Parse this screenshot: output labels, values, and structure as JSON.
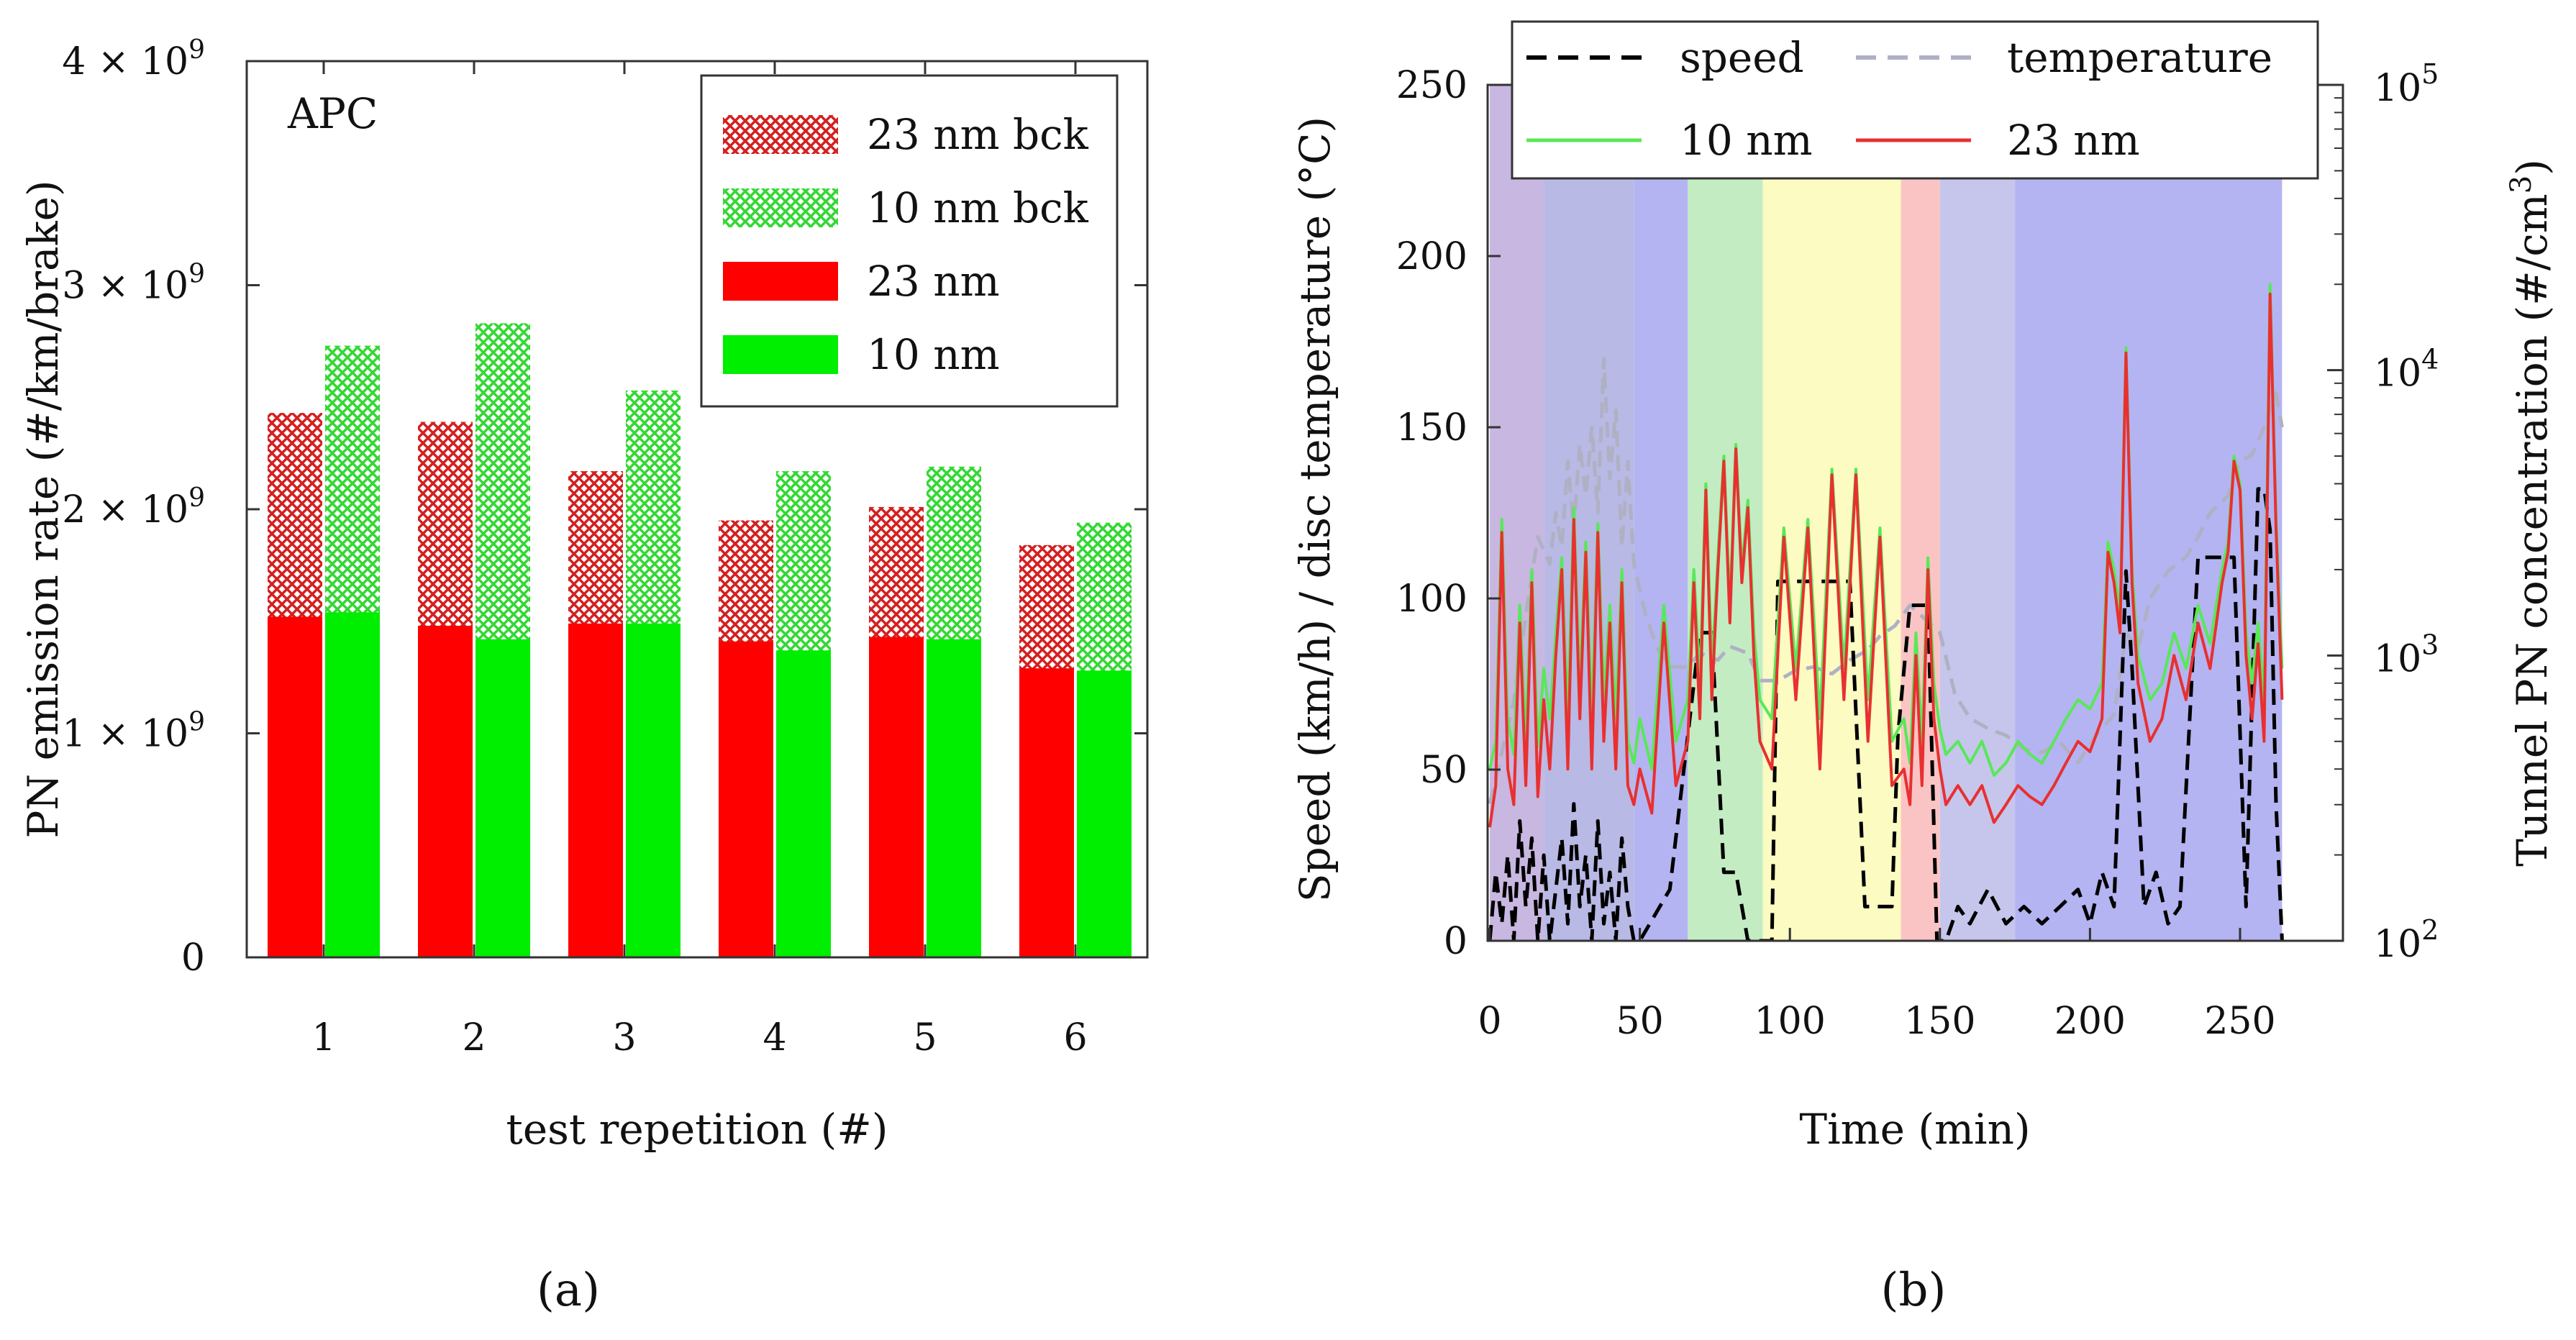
{
  "chart_data": [
    {
      "panel": "a",
      "type": "bar",
      "panel_label_text": "(a)",
      "annotation": "APC",
      "xlabel": "test repetition (#)",
      "ylabel": "PN emission rate (#/km/brake)",
      "categories": [
        "1",
        "2",
        "3",
        "4",
        "5",
        "6"
      ],
      "ylim": [
        0,
        4000000000.0
      ],
      "yticks": [
        {
          "value": 0,
          "label": "0",
          "exp": ""
        },
        {
          "value": 1000000000.0,
          "label": "1 × 10",
          "exp": "9"
        },
        {
          "value": 2000000000.0,
          "label": "2 × 10",
          "exp": "9"
        },
        {
          "value": 3000000000.0,
          "label": "3 × 10",
          "exp": "9"
        },
        {
          "value": 4000000000.0,
          "label": "4 × 10",
          "exp": "9"
        }
      ],
      "series": [
        {
          "name": "23 nm bck",
          "color": "#e8191c",
          "pattern": "hatch",
          "values": [
            2430000000.0,
            2390000000.0,
            2170000000.0,
            1950000000.0,
            2010000000.0,
            1840000000.0
          ]
        },
        {
          "name": "10 nm bck",
          "color": "#2ee82e",
          "pattern": "hatch",
          "values": [
            2730000000.0,
            2830000000.0,
            2530000000.0,
            2170000000.0,
            2190000000.0,
            1940000000.0
          ]
        },
        {
          "name": "23 nm",
          "color": "#ff0000",
          "pattern": "solid",
          "values": [
            1520000000.0,
            1480000000.0,
            1490000000.0,
            1410000000.0,
            1430000000.0,
            1290000000.0
          ]
        },
        {
          "name": "10 nm",
          "color": "#00ee00",
          "pattern": "solid",
          "values": [
            1540000000.0,
            1420000000.0,
            1490000000.0,
            1370000000.0,
            1420000000.0,
            1280000000.0
          ]
        }
      ],
      "legend_position": "top-right"
    },
    {
      "panel": "b",
      "type": "line",
      "panel_label_text": "(b)",
      "xlabel": "Time (min)",
      "ylabel": "Speed (km/h) / disc temperature (°C)",
      "y2label": "Tunnel PN concentration (#/cm",
      "y2label_exp": "3",
      "y2label_end": ")",
      "xlim": [
        0,
        285
      ],
      "xticks": [
        "0",
        "50",
        "100",
        "150",
        "200",
        "250"
      ],
      "ylim": [
        0,
        250
      ],
      "yticks": [
        "0",
        "50",
        "100",
        "150",
        "200",
        "250"
      ],
      "y2scale": "log",
      "y2lim": [
        100,
        100000
      ],
      "y2ticks": [
        {
          "base": "10",
          "exp": "2"
        },
        {
          "base": "10",
          "exp": "3"
        },
        {
          "base": "10",
          "exp": "4"
        },
        {
          "base": "10",
          "exp": "5"
        }
      ],
      "phases": [
        {
          "start": 0,
          "end": 18,
          "color": "#c8b7e0"
        },
        {
          "start": 18,
          "end": 48,
          "color": "#b9b9e6"
        },
        {
          "start": 48,
          "end": 66,
          "color": "#b4b4f2"
        },
        {
          "start": 66,
          "end": 91,
          "color": "#c3ecc3"
        },
        {
          "start": 91,
          "end": 137,
          "color": "#fbfbc2"
        },
        {
          "start": 137,
          "end": 150,
          "color": "#fbc4c4"
        },
        {
          "start": 150,
          "end": 175,
          "color": "#c6c6ec"
        },
        {
          "start": 175,
          "end": 264,
          "color": "#b4b4f2"
        }
      ],
      "series": [
        {
          "name": "speed",
          "color": "#000000",
          "style": "dashed",
          "axis": "left",
          "x": [
            0,
            2,
            4,
            6,
            8,
            10,
            12,
            14,
            16,
            18,
            20,
            22,
            24,
            26,
            28,
            30,
            32,
            34,
            36,
            38,
            40,
            42,
            44,
            46,
            48,
            50,
            60,
            70,
            74,
            78,
            82,
            86,
            90,
            94,
            96,
            100,
            105,
            110,
            116,
            120,
            125,
            130,
            134,
            136,
            140,
            143,
            146,
            149,
            152,
            156,
            160,
            166,
            172,
            178,
            184,
            190,
            196,
            200,
            204,
            208,
            212,
            214,
            218,
            222,
            226,
            230,
            236,
            240,
            244,
            248,
            252,
            256,
            258,
            260,
            262,
            264
          ],
          "y": [
            0,
            20,
            5,
            25,
            0,
            35,
            10,
            30,
            0,
            25,
            0,
            15,
            30,
            5,
            40,
            10,
            25,
            0,
            35,
            5,
            20,
            0,
            30,
            10,
            0,
            0,
            15,
            90,
            90,
            20,
            20,
            0,
            0,
            0,
            105,
            105,
            105,
            105,
            105,
            105,
            10,
            10,
            10,
            60,
            98,
            98,
            98,
            0,
            0,
            10,
            5,
            15,
            5,
            10,
            5,
            10,
            15,
            5,
            20,
            10,
            108,
            80,
            10,
            20,
            5,
            10,
            112,
            112,
            112,
            112,
            10,
            132,
            132,
            120,
            40,
            0
          ]
        },
        {
          "name": "temperature",
          "color": "#b0b0c4",
          "style": "dashed",
          "axis": "left",
          "x": [
            0,
            4,
            8,
            12,
            16,
            20,
            22,
            24,
            26,
            28,
            30,
            32,
            34,
            36,
            38,
            40,
            42,
            44,
            46,
            48,
            52,
            56,
            60,
            66,
            70,
            76,
            80,
            86,
            90,
            96,
            102,
            108,
            114,
            120,
            126,
            130,
            135,
            140,
            145,
            150,
            155,
            160,
            166,
            172,
            178,
            184,
            190,
            196,
            202,
            208,
            212,
            216,
            220,
            226,
            232,
            236,
            240,
            246,
            250,
            254,
            258,
            262,
            264
          ],
          "y": [
            40,
            55,
            70,
            95,
            118,
            110,
            125,
            115,
            140,
            120,
            145,
            130,
            150,
            125,
            170,
            135,
            155,
            115,
            140,
            110,
            95,
            85,
            80,
            80,
            84,
            82,
            86,
            84,
            76,
            76,
            79,
            80,
            78,
            82,
            85,
            89,
            92,
            98,
            94,
            90,
            72,
            65,
            62,
            60,
            56,
            55,
            58,
            52,
            60,
            66,
            90,
            85,
            100,
            108,
            112,
            118,
            125,
            130,
            140,
            142,
            150,
            160,
            150
          ]
        },
        {
          "name": "10 nm",
          "color": "#58e858",
          "style": "solid",
          "axis": "right",
          "x": [
            0,
            2,
            4,
            6,
            8,
            10,
            12,
            14,
            16,
            18,
            20,
            22,
            24,
            26,
            28,
            30,
            32,
            34,
            36,
            38,
            40,
            42,
            44,
            46,
            48,
            50,
            54,
            58,
            62,
            66,
            68,
            70,
            72,
            74,
            76,
            78,
            80,
            82,
            84,
            86,
            88,
            90,
            94,
            98,
            102,
            106,
            110,
            114,
            118,
            122,
            126,
            130,
            134,
            138,
            140,
            142,
            144,
            146,
            148,
            150,
            152,
            156,
            160,
            164,
            168,
            172,
            176,
            180,
            184,
            188,
            192,
            196,
            200,
            204,
            206,
            208,
            210,
            212,
            214,
            216,
            220,
            224,
            228,
            232,
            236,
            240,
            244,
            246,
            248,
            250,
            252,
            254,
            256,
            258,
            260,
            262,
            264
          ],
          "y": [
            400,
            500,
            3000,
            600,
            450,
            1500,
            500,
            2000,
            480,
            900,
            600,
            1200,
            2200,
            600,
            3300,
            800,
            2500,
            600,
            2900,
            700,
            1500,
            600,
            2000,
            500,
            420,
            600,
            400,
            1500,
            500,
            700,
            2000,
            800,
            4000,
            900,
            2200,
            5000,
            1500,
            5500,
            2000,
            3500,
            1200,
            700,
            600,
            2800,
            900,
            3000,
            600,
            4500,
            900,
            4500,
            700,
            2800,
            500,
            600,
            420,
            1200,
            500,
            2200,
            800,
            550,
            450,
            500,
            420,
            500,
            380,
            420,
            500,
            450,
            420,
            500,
            600,
            700,
            650,
            800,
            2500,
            2000,
            1400,
            12000,
            2000,
            1000,
            700,
            800,
            1200,
            900,
            1500,
            1100,
            2000,
            2500,
            5000,
            4000,
            1200,
            800,
            1300,
            700,
            20000,
            3000,
            900
          ]
        },
        {
          "name": "23 nm",
          "color": "#e83030",
          "style": "solid",
          "axis": "right",
          "x": [
            0,
            2,
            4,
            6,
            8,
            10,
            12,
            14,
            16,
            18,
            20,
            22,
            24,
            26,
            28,
            30,
            32,
            34,
            36,
            38,
            40,
            42,
            44,
            46,
            48,
            50,
            54,
            58,
            62,
            66,
            68,
            70,
            72,
            74,
            76,
            78,
            80,
            82,
            84,
            86,
            88,
            90,
            94,
            98,
            102,
            106,
            110,
            114,
            118,
            122,
            126,
            130,
            134,
            138,
            140,
            142,
            144,
            146,
            148,
            150,
            152,
            156,
            160,
            164,
            168,
            172,
            176,
            180,
            184,
            188,
            192,
            196,
            200,
            204,
            206,
            208,
            210,
            212,
            214,
            216,
            220,
            224,
            228,
            232,
            236,
            240,
            244,
            246,
            248,
            250,
            252,
            254,
            256,
            258,
            260,
            262,
            264
          ],
          "y": [
            250,
            350,
            2700,
            400,
            300,
            1300,
            350,
            1800,
            320,
            700,
            400,
            1000,
            2000,
            400,
            3000,
            600,
            2300,
            400,
            2700,
            500,
            1300,
            400,
            1800,
            350,
            300,
            400,
            280,
            1300,
            350,
            500,
            1800,
            600,
            3800,
            700,
            2000,
            4800,
            1300,
            5300,
            1800,
            3300,
            1000,
            500,
            400,
            2600,
            700,
            2800,
            400,
            4300,
            700,
            4300,
            500,
            2600,
            350,
            400,
            300,
            1000,
            350,
            2000,
            600,
            400,
            300,
            350,
            300,
            350,
            260,
            300,
            350,
            320,
            300,
            350,
            420,
            500,
            460,
            600,
            2300,
            1800,
            1200,
            11500,
            1800,
            800,
            500,
            600,
            1000,
            700,
            1300,
            900,
            1800,
            2300,
            4800,
            3800,
            1000,
            600,
            1100,
            500,
            18500,
            2800,
            700
          ]
        }
      ],
      "legend_position": "top"
    }
  ]
}
